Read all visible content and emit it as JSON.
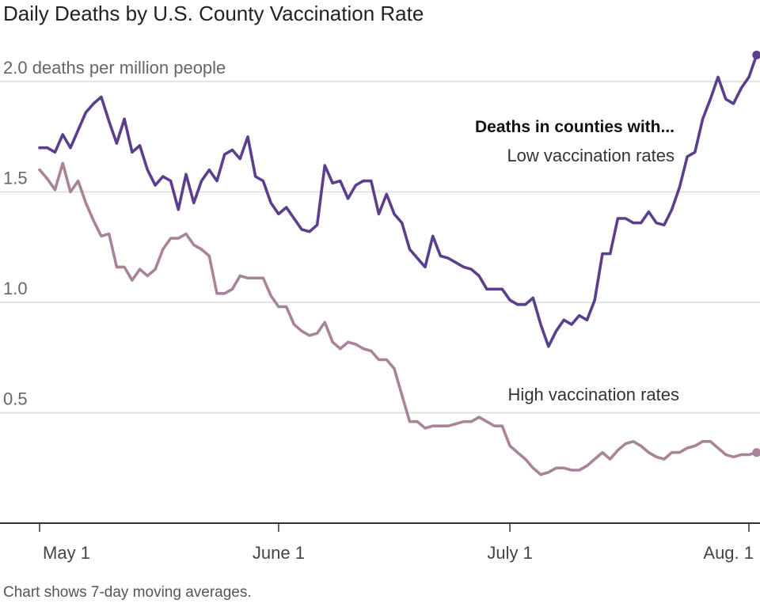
{
  "title": "Daily Deaths by U.S. County Vaccination Rate",
  "note": "Chart shows 7-day moving averages.",
  "chart_data": {
    "type": "line",
    "ylim": [
      0,
      2.1
    ],
    "yticks": [
      {
        "value": 2.0,
        "label": "2.0 deaths per million people"
      },
      {
        "value": 1.5,
        "label": "1.5"
      },
      {
        "value": 1.0,
        "label": "1.0"
      },
      {
        "value": 0.5,
        "label": "0.5"
      }
    ],
    "xlim": [
      0,
      92
    ],
    "xticks": [
      {
        "day": 0,
        "label": "May 1"
      },
      {
        "day": 31,
        "label": "June 1"
      },
      {
        "day": 61,
        "label": "July 1"
      },
      {
        "day": 92,
        "label": "Aug. 1"
      }
    ],
    "x_start_date": "2021-05-01",
    "annotation_heading": "Deaths in counties with...",
    "colors": {
      "low": "#5b3f8c",
      "high": "#a8849b",
      "grid": "#dcdcdc",
      "axis": "#333333"
    },
    "grid": true,
    "series": [
      {
        "name": "Low vaccination rates",
        "key": "low",
        "values": [
          1.7,
          1.7,
          1.68,
          1.76,
          1.7,
          1.78,
          1.86,
          1.9,
          1.93,
          1.82,
          1.72,
          1.83,
          1.68,
          1.71,
          1.6,
          1.53,
          1.57,
          1.55,
          1.42,
          1.58,
          1.45,
          1.55,
          1.6,
          1.55,
          1.67,
          1.69,
          1.65,
          1.75,
          1.57,
          1.55,
          1.45,
          1.4,
          1.43,
          1.38,
          1.33,
          1.32,
          1.35,
          1.62,
          1.54,
          1.55,
          1.47,
          1.53,
          1.55,
          1.55,
          1.4,
          1.49,
          1.4,
          1.36,
          1.24,
          1.2,
          1.16,
          1.3,
          1.21,
          1.2,
          1.18,
          1.16,
          1.15,
          1.12,
          1.06,
          1.06,
          1.06,
          1.01,
          0.99,
          0.99,
          1.02,
          0.9,
          0.8,
          0.87,
          0.92,
          0.9,
          0.94,
          0.92,
          1.01,
          1.22,
          1.22,
          1.38,
          1.38,
          1.36,
          1.36,
          1.41,
          1.36,
          1.35,
          1.42,
          1.52,
          1.66,
          1.68,
          1.83,
          1.92,
          2.02,
          1.92,
          1.9,
          1.97,
          2.02,
          2.12
        ]
      },
      {
        "name": "High vaccination rates",
        "key": "high",
        "values": [
          1.6,
          1.56,
          1.51,
          1.63,
          1.5,
          1.55,
          1.45,
          1.37,
          1.3,
          1.31,
          1.16,
          1.16,
          1.1,
          1.15,
          1.12,
          1.15,
          1.24,
          1.29,
          1.29,
          1.31,
          1.26,
          1.24,
          1.21,
          1.04,
          1.04,
          1.06,
          1.12,
          1.11,
          1.11,
          1.11,
          1.03,
          0.98,
          0.98,
          0.9,
          0.87,
          0.85,
          0.86,
          0.91,
          0.82,
          0.79,
          0.82,
          0.81,
          0.79,
          0.78,
          0.74,
          0.74,
          0.7,
          0.58,
          0.46,
          0.46,
          0.43,
          0.44,
          0.44,
          0.44,
          0.45,
          0.46,
          0.46,
          0.48,
          0.46,
          0.44,
          0.44,
          0.35,
          0.32,
          0.29,
          0.25,
          0.22,
          0.23,
          0.25,
          0.25,
          0.24,
          0.24,
          0.26,
          0.29,
          0.32,
          0.29,
          0.33,
          0.36,
          0.37,
          0.35,
          0.32,
          0.3,
          0.29,
          0.32,
          0.32,
          0.34,
          0.35,
          0.37,
          0.37,
          0.34,
          0.31,
          0.3,
          0.31,
          0.31,
          0.32
        ]
      }
    ]
  }
}
